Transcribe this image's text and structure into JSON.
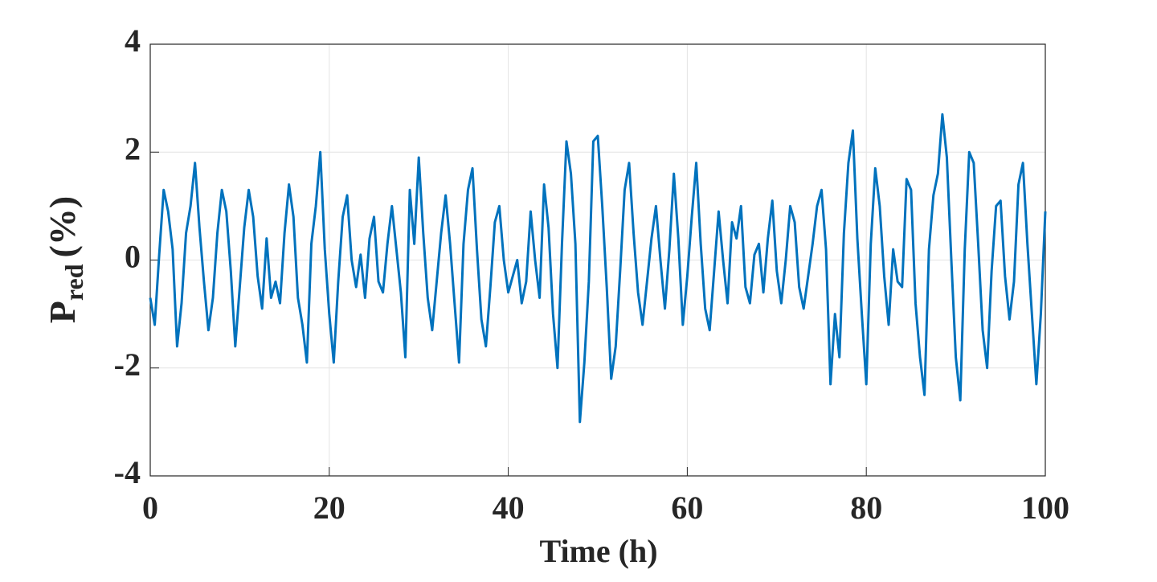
{
  "chart_data": {
    "type": "line",
    "xlabel": "Time (h)",
    "ylabel": "P",
    "ylabel_sub": "red",
    "ylabel_unit": "(%)",
    "xlim": [
      0,
      100
    ],
    "xticks": [
      0,
      20,
      40,
      60,
      80,
      100
    ],
    "ylim": [
      -4,
      4
    ],
    "yticks": [
      -4,
      -2,
      0,
      2,
      4
    ],
    "grid": true,
    "x": [
      0,
      0.5,
      1,
      1.5,
      2,
      2.5,
      3,
      3.5,
      4,
      4.5,
      5,
      5.5,
      6,
      6.5,
      7,
      7.5,
      8,
      8.5,
      9,
      9.5,
      10,
      10.5,
      11,
      11.5,
      12,
      12.5,
      13,
      13.5,
      14,
      14.5,
      15,
      15.5,
      16,
      16.5,
      17,
      17.5,
      18,
      18.5,
      19,
      19.5,
      20,
      20.5,
      21,
      21.5,
      22,
      22.5,
      23,
      23.5,
      24,
      24.5,
      25,
      25.5,
      26,
      26.5,
      27,
      27.5,
      28,
      28.5,
      29,
      29.5,
      30,
      30.5,
      31,
      31.5,
      32,
      32.5,
      33,
      33.5,
      34,
      34.5,
      35,
      35.5,
      36,
      36.5,
      37,
      37.5,
      38,
      38.5,
      39,
      39.5,
      40,
      40.5,
      41,
      41.5,
      42,
      42.5,
      43,
      43.5,
      44,
      44.5,
      45,
      45.5,
      46,
      46.5,
      47,
      47.5,
      48,
      48.5,
      49,
      49.5,
      50,
      50.5,
      51,
      51.5,
      52,
      52.5,
      53,
      53.5,
      54,
      54.5,
      55,
      55.5,
      56,
      56.5,
      57,
      57.5,
      58,
      58.5,
      59,
      59.5,
      60,
      60.5,
      61,
      61.5,
      62,
      62.5,
      63,
      63.5,
      64,
      64.5,
      65,
      65.5,
      66,
      66.5,
      67,
      67.5,
      68,
      68.5,
      69,
      69.5,
      70,
      70.5,
      71,
      71.5,
      72,
      72.5,
      73,
      73.5,
      74,
      74.5,
      75,
      75.5,
      76,
      76.5,
      77,
      77.5,
      78,
      78.5,
      79,
      79.5,
      80,
      80.5,
      81,
      81.5,
      82,
      82.5,
      83,
      83.5,
      84,
      84.5,
      85,
      85.5,
      86,
      86.5,
      87,
      87.5,
      88,
      88.5,
      89,
      89.5,
      90,
      90.5,
      91,
      91.5,
      92,
      92.5,
      93,
      93.5,
      94,
      94.5,
      95,
      95.5,
      96,
      96.5,
      97,
      97.5,
      98,
      98.5,
      99,
      99.5,
      100
    ],
    "series": [
      {
        "color": "#0072bd",
        "values": [
          -0.7,
          -1.2,
          0.1,
          1.3,
          0.9,
          0.2,
          -1.6,
          -0.8,
          0.5,
          1.0,
          1.8,
          0.6,
          -0.4,
          -1.3,
          -0.7,
          0.5,
          1.3,
          0.9,
          -0.2,
          -1.6,
          -0.5,
          0.6,
          1.3,
          0.8,
          -0.3,
          -0.9,
          0.4,
          -0.7,
          -0.4,
          -0.8,
          0.5,
          1.4,
          0.8,
          -0.7,
          -1.2,
          -1.9,
          0.3,
          1.0,
          2.0,
          0.2,
          -1.0,
          -1.9,
          -0.4,
          0.8,
          1.2,
          0.0,
          -0.5,
          0.1,
          -0.7,
          0.4,
          0.8,
          -0.4,
          -0.6,
          0.3,
          1.0,
          0.2,
          -0.6,
          -1.8,
          1.3,
          0.3,
          1.9,
          0.5,
          -0.7,
          -1.3,
          -0.4,
          0.5,
          1.2,
          0.3,
          -0.8,
          -1.9,
          0.3,
          1.3,
          1.7,
          0.2,
          -1.1,
          -1.6,
          -0.5,
          0.7,
          1.0,
          0.0,
          -0.6,
          -0.3,
          0.0,
          -0.8,
          -0.4,
          0.9,
          0.0,
          -0.7,
          1.4,
          0.6,
          -1.0,
          -2.0,
          0.3,
          2.2,
          1.6,
          0.3,
          -3.0,
          -1.9,
          -0.4,
          2.2,
          2.3,
          1.0,
          -0.5,
          -2.2,
          -1.6,
          -0.2,
          1.3,
          1.8,
          0.5,
          -0.6,
          -1.2,
          -0.4,
          0.4,
          1.0,
          0.0,
          -0.9,
          0.2,
          1.6,
          0.4,
          -1.2,
          -0.3,
          0.8,
          1.8,
          0.3,
          -0.9,
          -1.3,
          -0.2,
          0.9,
          0.0,
          -0.8,
          0.7,
          0.4,
          1.0,
          -0.5,
          -0.8,
          0.1,
          0.3,
          -0.6,
          0.4,
          1.1,
          -0.2,
          -0.8,
          0.0,
          1.0,
          0.7,
          -0.5,
          -0.9,
          -0.3,
          0.3,
          1.0,
          1.3,
          0.2,
          -2.3,
          -1.0,
          -1.8,
          0.5,
          1.8,
          2.4,
          0.4,
          -1.0,
          -2.3,
          0.3,
          1.7,
          1.0,
          -0.3,
          -1.2,
          0.2,
          -0.4,
          -0.5,
          1.5,
          1.3,
          -0.8,
          -1.8,
          -2.5,
          0.2,
          1.2,
          1.6,
          2.7,
          1.9,
          0.0,
          -1.8,
          -2.6,
          0.2,
          2.0,
          1.8,
          0.3,
          -1.3,
          -2.0,
          -0.2,
          1.0,
          1.1,
          -0.3,
          -1.1,
          -0.4,
          1.4,
          1.8,
          0.3,
          -1.0,
          -2.3,
          -1.0,
          0.9
        ]
      }
    ]
  }
}
